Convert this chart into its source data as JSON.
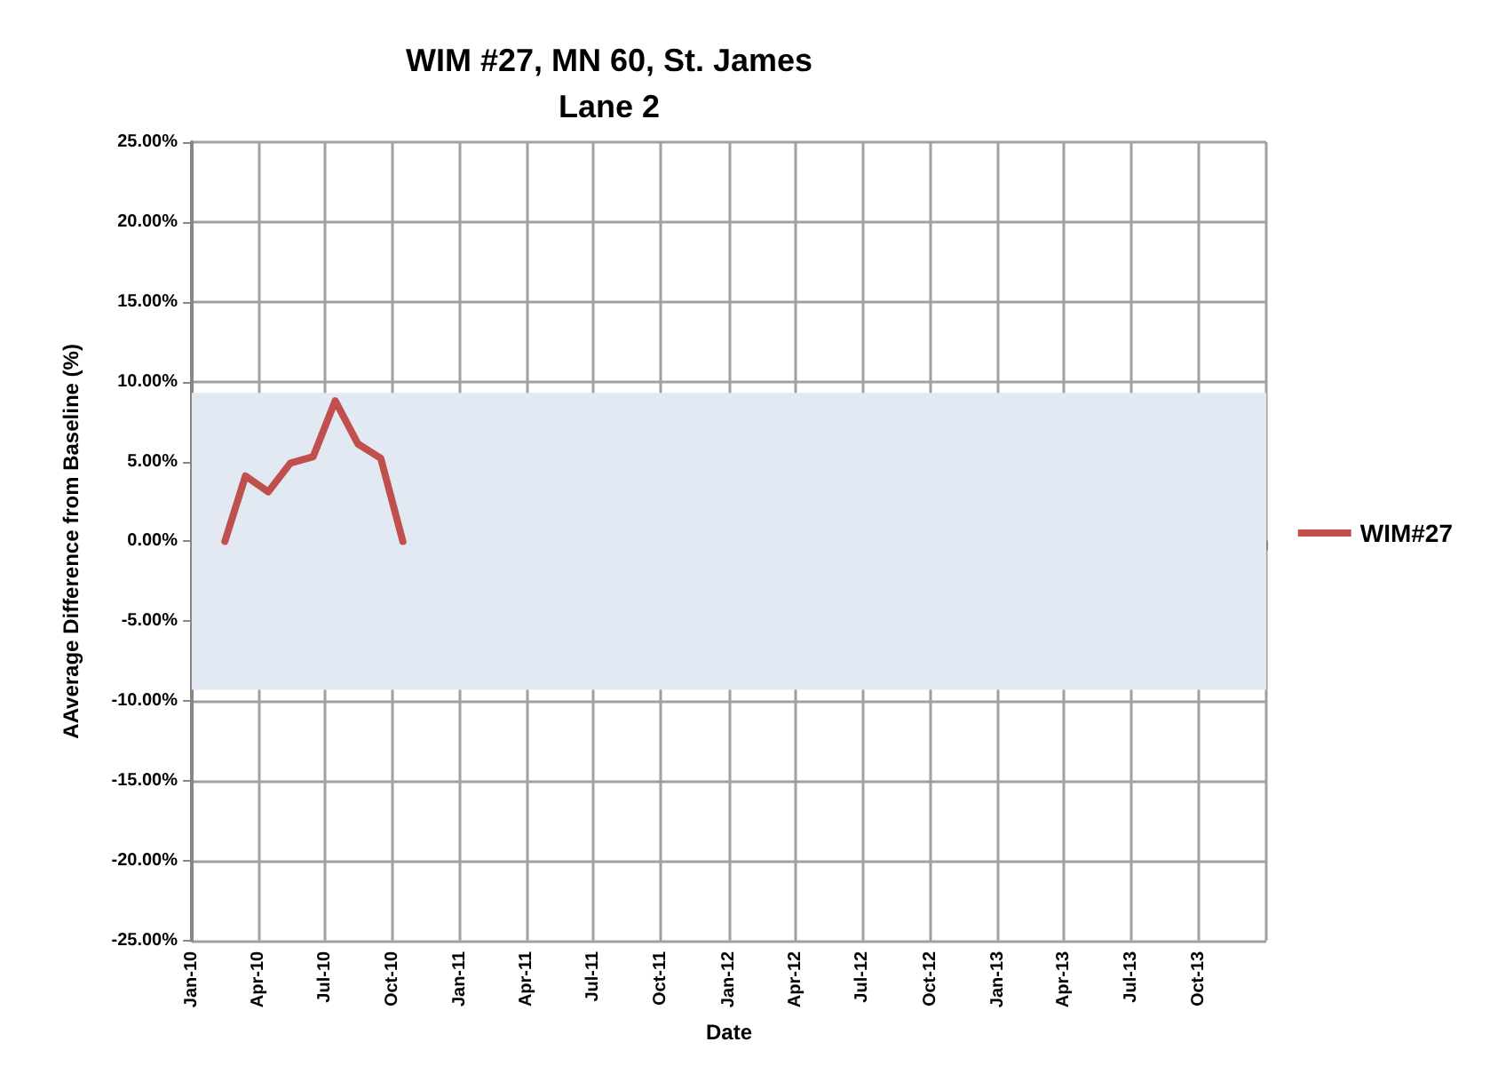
{
  "chart_data": {
    "type": "line",
    "title": "WIM #27, MN 60, St. James",
    "subtitle": "Lane 2",
    "xlabel": "Date",
    "ylabel": "AAverage Difference from Baseline (%)",
    "x": [
      "2010-02-15",
      "2010-03-15",
      "2010-04-15",
      "2010-05-15",
      "2010-06-15",
      "2010-07-15",
      "2010-08-15",
      "2010-09-15",
      "2010-10-15"
    ],
    "series": [
      {
        "name": "WIM#27",
        "color": "#c0504d",
        "values": [
          0,
          4.1,
          3.1,
          4.9,
          5.3,
          8.8,
          6.1,
          5.2,
          0
        ]
      }
    ],
    "xlim": [
      "2010-01",
      "2014-01"
    ],
    "xticks": [
      {
        "value": "2010-01",
        "label": "Jan-10"
      },
      {
        "value": "2010-04",
        "label": "Apr-10"
      },
      {
        "value": "2010-07",
        "label": "Jul-10"
      },
      {
        "value": "2010-10",
        "label": "Oct-10"
      },
      {
        "value": "2011-01",
        "label": "Jan-11"
      },
      {
        "value": "2011-04",
        "label": "Apr-11"
      },
      {
        "value": "2011-07",
        "label": "Jul-11"
      },
      {
        "value": "2011-10",
        "label": "Oct-11"
      },
      {
        "value": "2012-01",
        "label": "Jan-12"
      },
      {
        "value": "2012-04",
        "label": "Apr-12"
      },
      {
        "value": "2012-07",
        "label": "Jul-12"
      },
      {
        "value": "2012-10",
        "label": "Oct-12"
      },
      {
        "value": "2013-01",
        "label": "Jan-13"
      },
      {
        "value": "2013-04",
        "label": "Apr-13"
      },
      {
        "value": "2013-07",
        "label": "Jul-13"
      },
      {
        "value": "2013-10",
        "label": "Oct-13"
      },
      {
        "value": "2014-01",
        "label": null
      }
    ],
    "ylim": [
      -25,
      25
    ],
    "yticks": [
      {
        "value": -25,
        "label": "-25.00%"
      },
      {
        "value": -20,
        "label": "-20.00%"
      },
      {
        "value": -15,
        "label": "-15.00%"
      },
      {
        "value": -10,
        "label": "-10.00%"
      },
      {
        "value": -5,
        "label": "-5.00%"
      },
      {
        "value": 0,
        "label": "0.00%"
      },
      {
        "value": 5,
        "label": "5.00%"
      },
      {
        "value": 10,
        "label": "10.00%"
      },
      {
        "value": 15,
        "label": "15.00%"
      },
      {
        "value": 20,
        "label": "20.00%"
      },
      {
        "value": 25,
        "label": "25.00%"
      }
    ],
    "bands": [
      {
        "axis": "y",
        "from": -9.3,
        "to": 9.3,
        "color": "#e3e9f3"
      }
    ],
    "grid": true,
    "legend": "right",
    "marker": "none",
    "line_style": "solid"
  }
}
